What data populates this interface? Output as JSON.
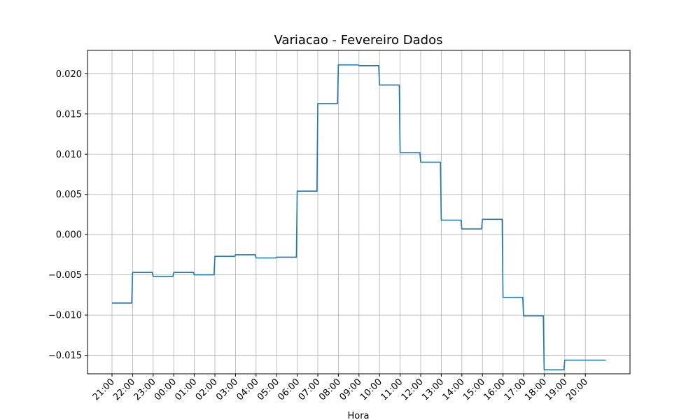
{
  "chart_data": {
    "type": "line",
    "title": "Variacao - Fevereiro Dados",
    "xlabel": "Hora",
    "ylabel": "",
    "x_ticks": [
      "21:00",
      "22:00",
      "23:00",
      "00:00",
      "01:00",
      "02:00",
      "03:00",
      "04:00",
      "05:00",
      "06:00",
      "07:00",
      "08:00",
      "09:00",
      "10:00",
      "11:00",
      "12:00",
      "13:00",
      "14:00",
      "15:00",
      "16:00",
      "17:00",
      "18:00",
      "19:00",
      "20:00"
    ],
    "y_ticks": [
      -0.015,
      -0.01,
      -0.005,
      0.0,
      0.005,
      0.01,
      0.015,
      0.02
    ],
    "y_tick_labels": [
      "−0.015",
      "−0.010",
      "−0.005",
      "0.000",
      "0.005",
      "0.010",
      "0.015",
      "0.020"
    ],
    "ylim": [
      -0.0173,
      0.0229
    ],
    "grid": true,
    "line_color": "#1f77b4",
    "series": [
      {
        "x": [
          "21:00",
          "22:00",
          "23:00",
          "00:00",
          "01:00",
          "02:00",
          "03:00",
          "04:00",
          "05:00",
          "06:00",
          "07:00",
          "08:00",
          "09:00",
          "10:00",
          "11:00",
          "12:00",
          "13:00",
          "14:00",
          "15:00",
          "16:00",
          "17:00",
          "18:00",
          "19:00",
          "20:00"
        ],
        "values": [
          -0.0085,
          -0.0047,
          -0.0052,
          -0.0047,
          -0.005,
          -0.0027,
          -0.0025,
          -0.0029,
          -0.0028,
          0.0054,
          0.0163,
          0.0211,
          0.021,
          0.0186,
          0.0102,
          0.009,
          0.0018,
          0.0007,
          0.0019,
          -0.0078,
          -0.0101,
          -0.0168,
          -0.0156,
          -0.0156
        ]
      }
    ]
  }
}
